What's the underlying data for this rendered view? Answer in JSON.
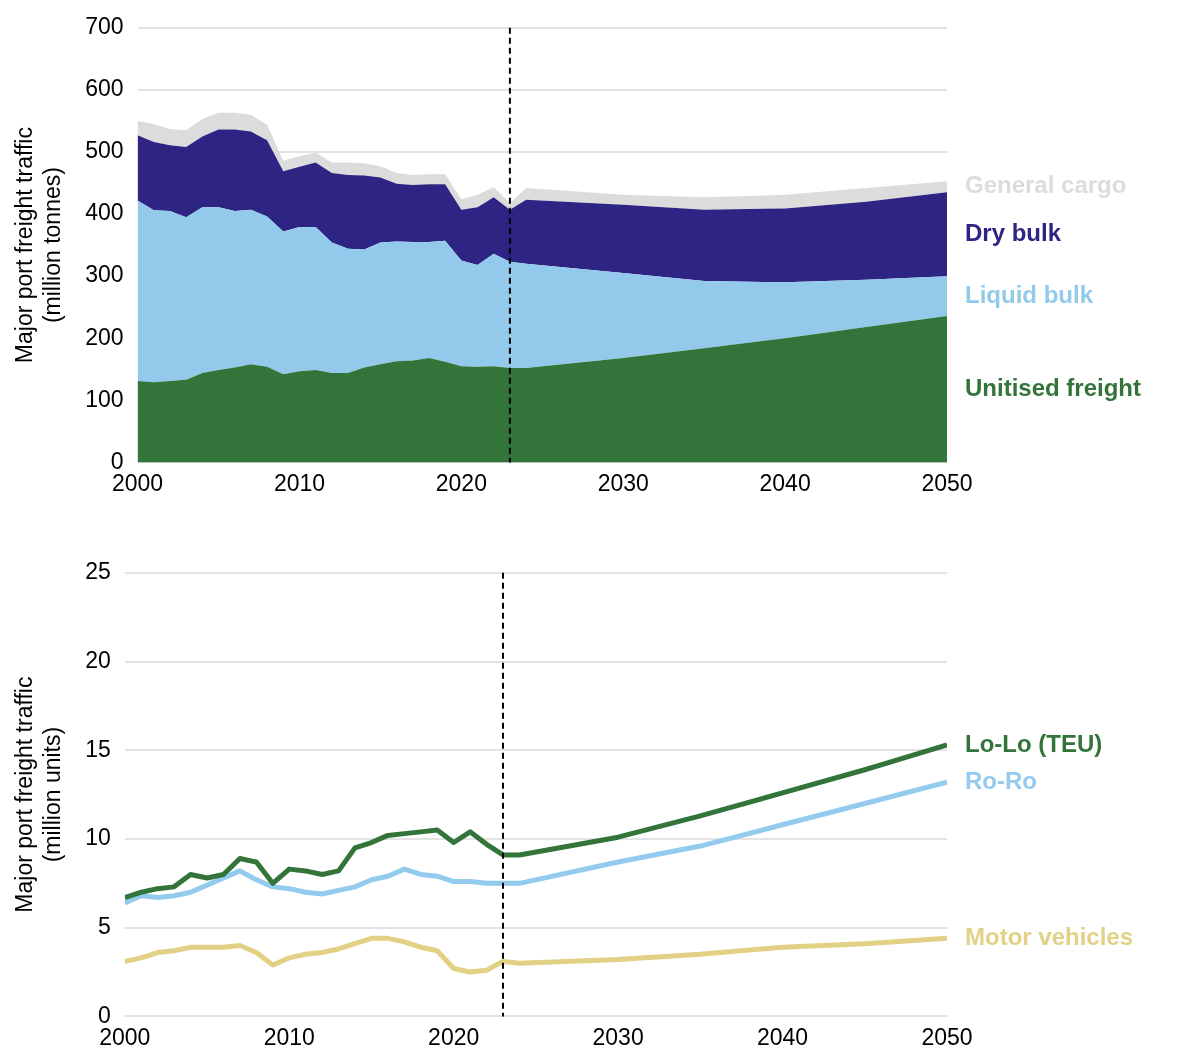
{
  "chart_data": [
    {
      "type": "area",
      "stacked": true,
      "ylabel": "Major port freight traffic\n(million tonnes)",
      "x": [
        2000,
        2001,
        2002,
        2003,
        2004,
        2005,
        2006,
        2007,
        2008,
        2009,
        2010,
        2011,
        2012,
        2013,
        2014,
        2015,
        2016,
        2017,
        2018,
        2019,
        2020,
        2021,
        2022,
        2023,
        2024,
        2030,
        2035,
        2040,
        2045,
        2050
      ],
      "xlim": [
        2000,
        2050
      ],
      "xticks": [
        2000,
        2010,
        2020,
        2030,
        2040,
        2050
      ],
      "ylim": [
        0,
        700
      ],
      "yticks": [
        0,
        100,
        200,
        300,
        400,
        500,
        600,
        700
      ],
      "grid": "y",
      "legend": false,
      "series": [
        {
          "name": "Unitised freight",
          "color": "#33743a",
          "values": [
            131,
            129,
            131,
            133,
            144,
            149,
            153,
            158,
            154,
            142,
            147,
            149,
            144,
            144,
            153,
            158,
            163,
            164,
            168,
            162,
            155,
            154,
            155,
            152,
            152,
            168,
            184,
            200,
            218,
            236
          ]
        },
        {
          "name": "Liquid bulk",
          "color": "#93c9ea",
          "values": [
            291,
            277,
            274,
            262,
            267,
            262,
            252,
            249,
            242,
            230,
            232,
            230,
            210,
            200,
            190,
            196,
            193,
            191,
            187,
            195,
            170,
            164,
            181,
            171,
            168,
            137,
            108,
            90,
            76,
            64
          ]
        },
        {
          "name": "Dry bulk",
          "color": "#2e2483",
          "values": [
            105,
            110,
            106,
            113,
            114,
            125,
            131,
            126,
            123,
            97,
            97,
            104,
            112,
            119,
            119,
            105,
            93,
            92,
            93,
            91,
            82,
            93,
            91,
            84,
            103,
            110,
            115,
            119,
            126,
            135
          ]
        },
        {
          "name": "General cargo",
          "color": "#dcdcdc",
          "values": [
            23,
            29,
            26,
            27,
            28,
            27,
            27,
            27,
            25,
            17,
            17,
            16,
            17,
            20,
            20,
            18,
            17,
            16,
            16,
            16,
            17,
            20,
            16,
            11,
            19,
            16,
            20,
            22,
            22,
            18
          ]
        }
      ],
      "ref_lines": [
        {
          "axis": "x",
          "value": 2023,
          "color": "#000000",
          "line_style": "dashed"
        }
      ]
    },
    {
      "type": "line",
      "ylabel": "Major port freight traffic\n(million units)",
      "x": [
        2000,
        2001,
        2002,
        2003,
        2004,
        2005,
        2006,
        2007,
        2008,
        2009,
        2010,
        2011,
        2012,
        2013,
        2014,
        2015,
        2016,
        2017,
        2018,
        2019,
        2020,
        2021,
        2022,
        2023,
        2024,
        2030,
        2035,
        2040,
        2045,
        2050
      ],
      "xlim": [
        2000,
        2050
      ],
      "xticks": [
        2000,
        2010,
        2020,
        2030,
        2040,
        2050
      ],
      "ylim": [
        0,
        25
      ],
      "yticks": [
        0,
        5,
        10,
        15,
        20,
        25
      ],
      "grid": "y",
      "legend": false,
      "marker": "none",
      "line_style": "solid",
      "series": [
        {
          "name": "Lo-Lo (TEU)",
          "color": "#33743a",
          "values": [
            6.7,
            7.0,
            7.2,
            7.3,
            8.0,
            7.8,
            8.0,
            8.9,
            8.7,
            7.5,
            8.3,
            8.2,
            8.0,
            8.2,
            9.5,
            9.8,
            10.2,
            10.3,
            10.4,
            10.5,
            9.8,
            10.4,
            9.7,
            9.1,
            9.1,
            10.1,
            11.3,
            12.6,
            13.9,
            15.3
          ]
        },
        {
          "name": "Ro-Ro",
          "color": "#93cbee",
          "values": [
            6.4,
            6.8,
            6.7,
            6.8,
            7.0,
            7.4,
            7.8,
            8.2,
            7.7,
            7.3,
            7.2,
            7.0,
            6.9,
            7.1,
            7.3,
            7.7,
            7.9,
            8.3,
            8.0,
            7.9,
            7.6,
            7.6,
            7.5,
            7.5,
            7.5,
            8.7,
            9.6,
            10.8,
            12.0,
            13.2
          ]
        },
        {
          "name": "Motor vehicles",
          "color": "#e2d185",
          "values": [
            3.1,
            3.3,
            3.6,
            3.7,
            3.9,
            3.9,
            3.9,
            4.0,
            3.6,
            2.9,
            3.3,
            3.5,
            3.6,
            3.8,
            4.1,
            4.4,
            4.4,
            4.2,
            3.9,
            3.7,
            2.7,
            2.5,
            2.6,
            3.1,
            3.0,
            3.2,
            3.5,
            3.9,
            4.1,
            4.4
          ]
        }
      ],
      "ref_lines": [
        {
          "axis": "x",
          "value": 2023,
          "color": "#000000",
          "line_style": "dashed"
        }
      ]
    }
  ]
}
